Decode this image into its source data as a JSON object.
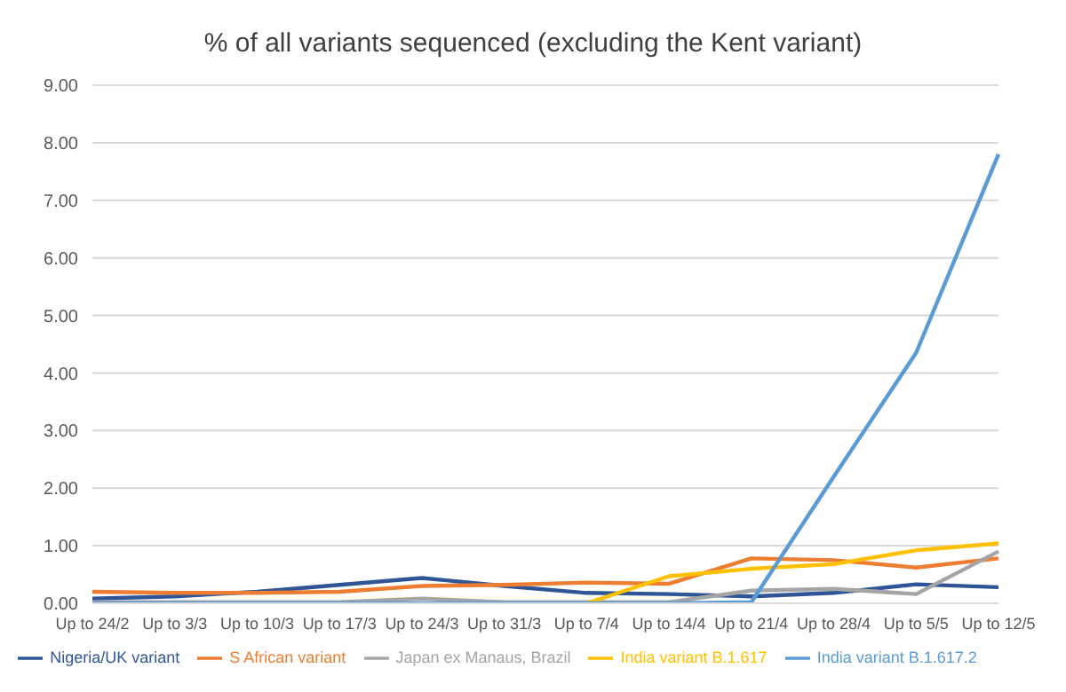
{
  "chart_data": {
    "type": "line",
    "title": "% of all variants sequenced (excluding the Kent variant)",
    "categories": [
      "Up to 24/2",
      "Up to 3/3",
      "Up to 10/3",
      "Up to 17/3",
      "Up to 24/3",
      "Up to 31/3",
      "Up to 7/4",
      "Up to 14/4",
      "Up to 21/4",
      "Up to 28/4",
      "Up to 5/5",
      "Up to 12/5"
    ],
    "series": [
      {
        "name": "Nigeria/UK variant",
        "color": "#2f5597",
        "values": [
          0.08,
          0.12,
          0.2,
          0.32,
          0.44,
          0.3,
          0.18,
          0.16,
          0.12,
          0.18,
          0.33,
          0.28
        ]
      },
      {
        "name": "S African variant",
        "color": "#ed7d31",
        "values": [
          0.2,
          0.18,
          0.18,
          0.2,
          0.3,
          0.32,
          0.36,
          0.34,
          0.78,
          0.75,
          0.62,
          0.78
        ]
      },
      {
        "name": "Japan ex Manaus, Brazil",
        "color": "#a5a5a5",
        "values": [
          0.02,
          0.02,
          0.02,
          0.02,
          0.08,
          0.02,
          0.02,
          0.02,
          0.22,
          0.25,
          0.16,
          0.9
        ]
      },
      {
        "name": "India variant B.1.617",
        "color": "#ffc000",
        "values": [
          null,
          null,
          null,
          null,
          null,
          null,
          0.0,
          0.47,
          0.6,
          0.68,
          0.92,
          1.04
        ]
      },
      {
        "name": "India variant B.1.617.2",
        "color": "#5b9bd5",
        "values": [
          0.0,
          0.0,
          0.0,
          0.0,
          0.0,
          0.0,
          0.0,
          0.0,
          0.02,
          2.2,
          4.35,
          7.8
        ]
      }
    ],
    "ylim": [
      0,
      9
    ],
    "yticks": [
      {
        "value": 0,
        "label": "0.00"
      },
      {
        "value": 1,
        "label": "1.00"
      },
      {
        "value": 2,
        "label": "2.00"
      },
      {
        "value": 3,
        "label": "3.00"
      },
      {
        "value": 4,
        "label": "4.00"
      },
      {
        "value": 5,
        "label": "5.00"
      },
      {
        "value": 6,
        "label": "6.00"
      },
      {
        "value": 7,
        "label": "7.00"
      },
      {
        "value": 8,
        "label": "8.00"
      },
      {
        "value": 9,
        "label": "9.00"
      }
    ],
    "grid": "y",
    "legend": "bottom",
    "marker": "none",
    "line_style": "solid"
  }
}
